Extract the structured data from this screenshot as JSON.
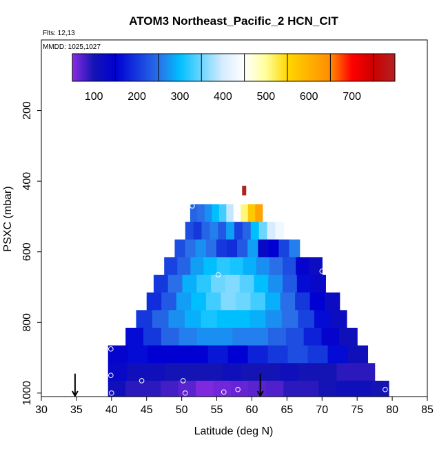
{
  "chart_data": {
    "type": "heatmap",
    "title": "ATOM3 Northeast_Pacific_2 HCN_CIT",
    "flights_label": "Flts: 12,13",
    "dates_label": "MMDD: 1025,1027",
    "xlabel": "Latitude (deg N)",
    "ylabel": "PSXC (mbar)",
    "xlim": [
      30,
      85
    ],
    "ylim": [
      1010,
      0
    ],
    "x_ticks": [
      30,
      35,
      40,
      45,
      50,
      55,
      60,
      65,
      70,
      75,
      80,
      85
    ],
    "y_ticks": [
      200,
      400,
      600,
      800,
      1000
    ],
    "colorbar": {
      "range": [
        50,
        800
      ],
      "ticks": [
        100,
        200,
        300,
        400,
        500,
        600,
        700
      ],
      "stops": [
        {
          "v": 50,
          "c": "#8a2be2"
        },
        {
          "v": 100,
          "c": "#1414b4"
        },
        {
          "v": 150,
          "c": "#0000d2"
        },
        {
          "v": 250,
          "c": "#2a6fe8"
        },
        {
          "v": 300,
          "c": "#00bfff"
        },
        {
          "v": 400,
          "c": "#d8ecff"
        },
        {
          "v": 450,
          "c": "#ffffff"
        },
        {
          "v": 500,
          "c": "#ffff9a"
        },
        {
          "v": 550,
          "c": "#ffd700"
        },
        {
          "v": 650,
          "c": "#ff8c00"
        },
        {
          "v": 700,
          "c": "#ff0000"
        },
        {
          "v": 750,
          "c": "#cc0000"
        },
        {
          "v": 800,
          "c": "#b22222"
        }
      ]
    },
    "layers": [
      {
        "p_top": 465,
        "p_bot": 515,
        "lat_min": 51.2,
        "lat_max": 61.5,
        "values": [
          240,
          250,
          270,
          300,
          330,
          390,
          450,
          510,
          570,
          620
        ]
      },
      {
        "p_top": 515,
        "p_bot": 565,
        "lat_min": 50.5,
        "lat_max": 64.5,
        "values": [
          220,
          200,
          240,
          260,
          230,
          280,
          210,
          240,
          300,
          350,
          400,
          430
        ]
      },
      {
        "p_top": 565,
        "p_bot": 615,
        "lat_min": 49.0,
        "lat_max": 66.8,
        "values": [
          220,
          250,
          270,
          250,
          200,
          190,
          230,
          280,
          130,
          150,
          210,
          260
        ]
      },
      {
        "p_top": 615,
        "p_bot": 665,
        "lat_min": 47.5,
        "lat_max": 70.0,
        "values": [
          210,
          240,
          280,
          300,
          320,
          310,
          290,
          270,
          250,
          220,
          140,
          120
        ]
      },
      {
        "p_top": 665,
        "p_bot": 715,
        "lat_min": 46.0,
        "lat_max": 70.5,
        "values": [
          200,
          250,
          290,
          320,
          350,
          360,
          340,
          300,
          270,
          230,
          160,
          130
        ]
      },
      {
        "p_top": 715,
        "p_bot": 765,
        "lat_min": 45.0,
        "lat_max": 72.5,
        "values": [
          190,
          230,
          280,
          300,
          330,
          360,
          350,
          330,
          290,
          250,
          200,
          150,
          120
        ]
      },
      {
        "p_top": 765,
        "p_bot": 815,
        "lat_min": 43.5,
        "lat_max": 73.5,
        "values": [
          200,
          240,
          270,
          290,
          310,
          300,
          300,
          290,
          270,
          250,
          210,
          160,
          120
        ]
      },
      {
        "p_top": 815,
        "p_bot": 865,
        "lat_min": 42.0,
        "lat_max": 75.0,
        "values": [
          160,
          200,
          240,
          260,
          270,
          270,
          260,
          260,
          240,
          220,
          180,
          140,
          110
        ]
      },
      {
        "p_top": 865,
        "p_bot": 915,
        "lat_min": 39.5,
        "lat_max": 76.5,
        "values": [
          140,
          160,
          150,
          150,
          150,
          170,
          150,
          180,
          200,
          220,
          200,
          160,
          110
        ]
      },
      {
        "p_top": 915,
        "p_bot": 965,
        "lat_min": 39.5,
        "lat_max": 77.5,
        "values": [
          130,
          110,
          110,
          100,
          100,
          100,
          110,
          100,
          100,
          110,
          100,
          100,
          90,
          90
        ]
      },
      {
        "p_top": 965,
        "p_bot": 1010,
        "lat_min": 39.5,
        "lat_max": 79.5,
        "values": [
          110,
          90,
          90,
          80,
          70,
          55,
          60,
          65,
          70,
          75,
          90,
          90,
          100,
          110,
          110,
          100
        ]
      }
    ],
    "points": [
      {
        "lat": 51.5,
        "p": 470
      },
      {
        "lat": 58.8,
        "p": 450
      },
      {
        "lat": 55.2,
        "p": 665
      },
      {
        "lat": 70.0,
        "p": 655
      },
      {
        "lat": 39.9,
        "p": 875
      },
      {
        "lat": 39.9,
        "p": 950
      },
      {
        "lat": 44.3,
        "p": 965
      },
      {
        "lat": 50.2,
        "p": 965
      },
      {
        "lat": 40.0,
        "p": 1000
      },
      {
        "lat": 50.5,
        "p": 1000
      },
      {
        "lat": 56.0,
        "p": 997
      },
      {
        "lat": 58.0,
        "p": 990
      },
      {
        "lat": 79.0,
        "p": 990
      }
    ],
    "spike": {
      "lat": 58.9,
      "p_top": 413,
      "p_bot": 440,
      "value": 800
    },
    "arrows": [
      {
        "lat": 34.8,
        "p_top": 945,
        "p_bot": 1008
      },
      {
        "lat": 61.2,
        "p_top": 945,
        "p_bot": 1008
      }
    ]
  }
}
